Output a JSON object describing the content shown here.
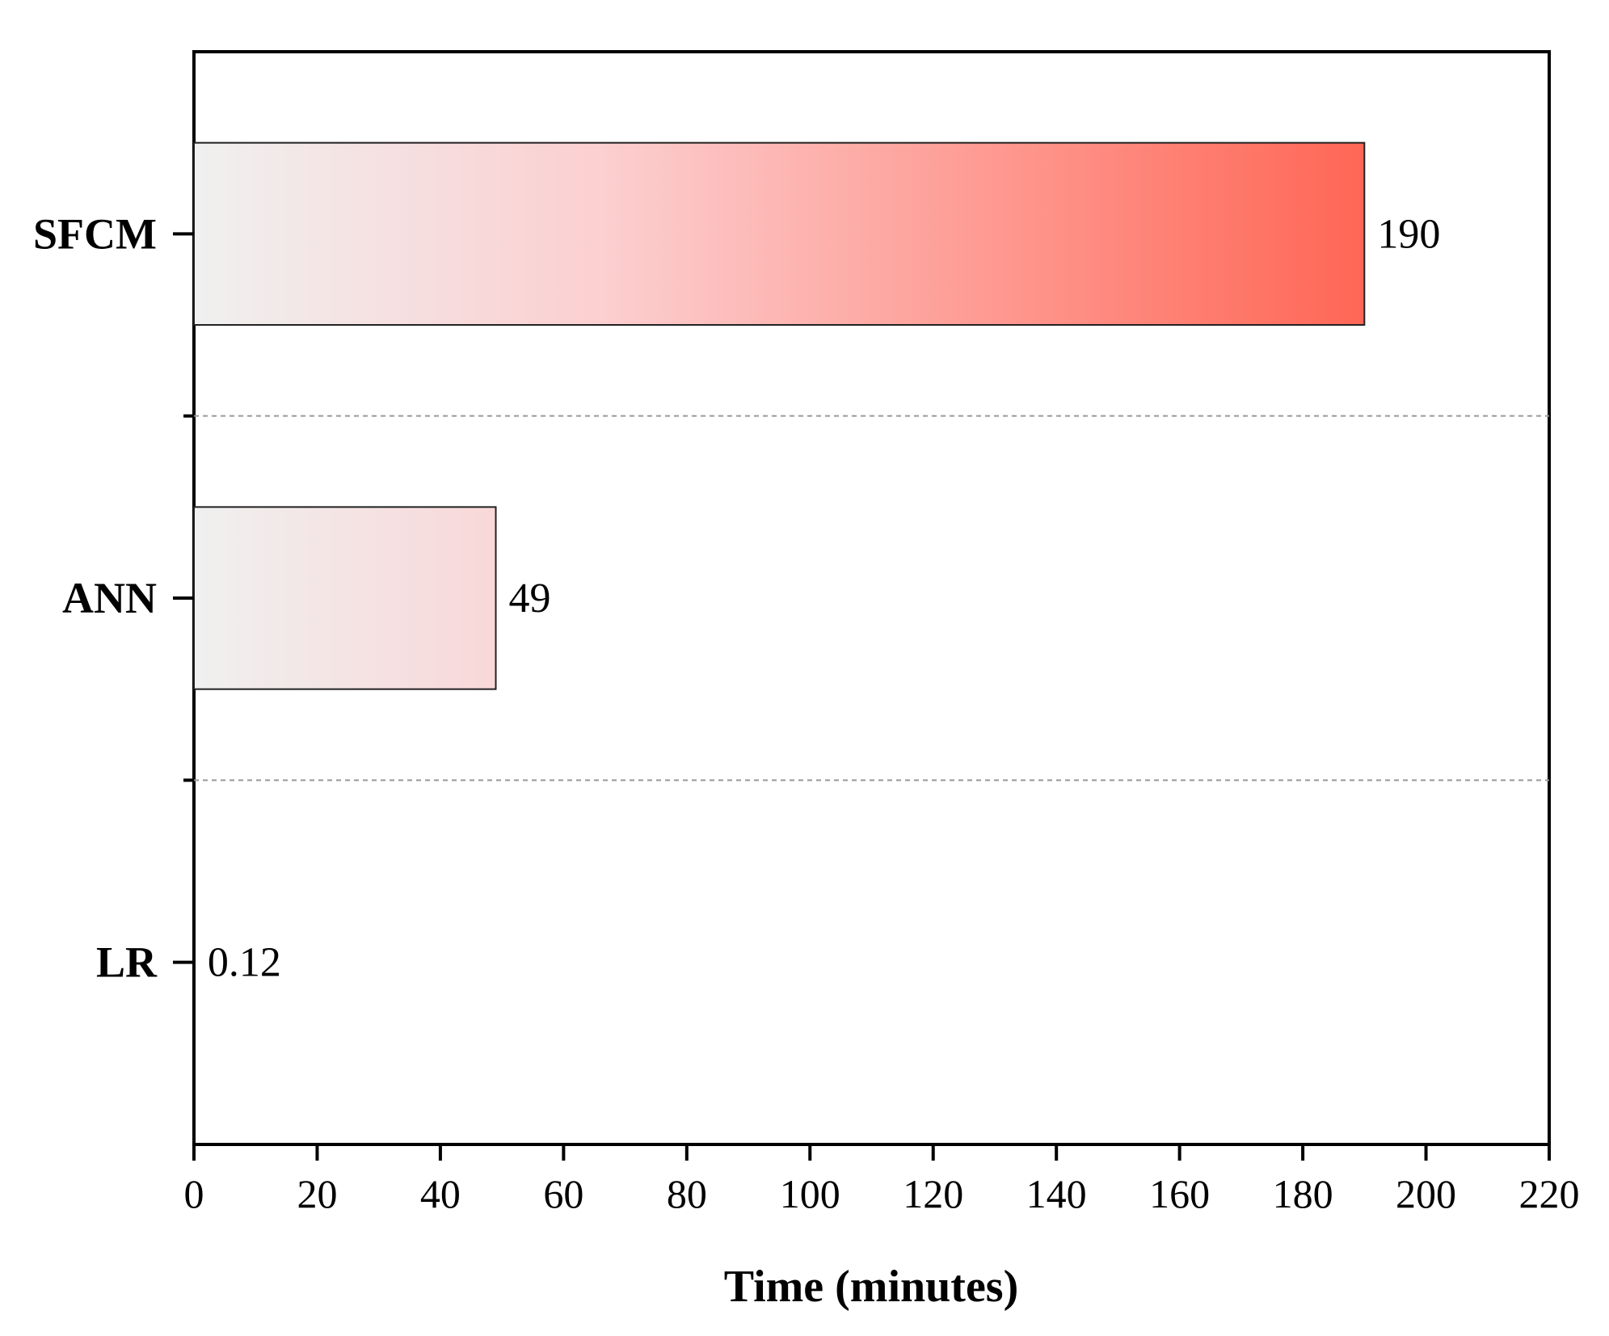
{
  "chart_data": {
    "type": "bar",
    "orientation": "horizontal",
    "categories": [
      "SFCM",
      "ANN",
      "LR"
    ],
    "values": [
      190,
      49,
      0.12
    ],
    "value_labels": [
      "190",
      "49",
      "0.12"
    ],
    "xlabel": "Time (minutes)",
    "ylabel": "",
    "xlim": [
      0,
      220
    ],
    "xticks": [
      0,
      20,
      40,
      60,
      80,
      100,
      120,
      140,
      160,
      180,
      200,
      220
    ],
    "grid": "dashed horizontal separators between categories",
    "colors": {
      "bar_start": "#f0f0f0",
      "bar_mid": "#fccfd0",
      "bar_end": "#ff6655",
      "separator": "#999999"
    }
  }
}
